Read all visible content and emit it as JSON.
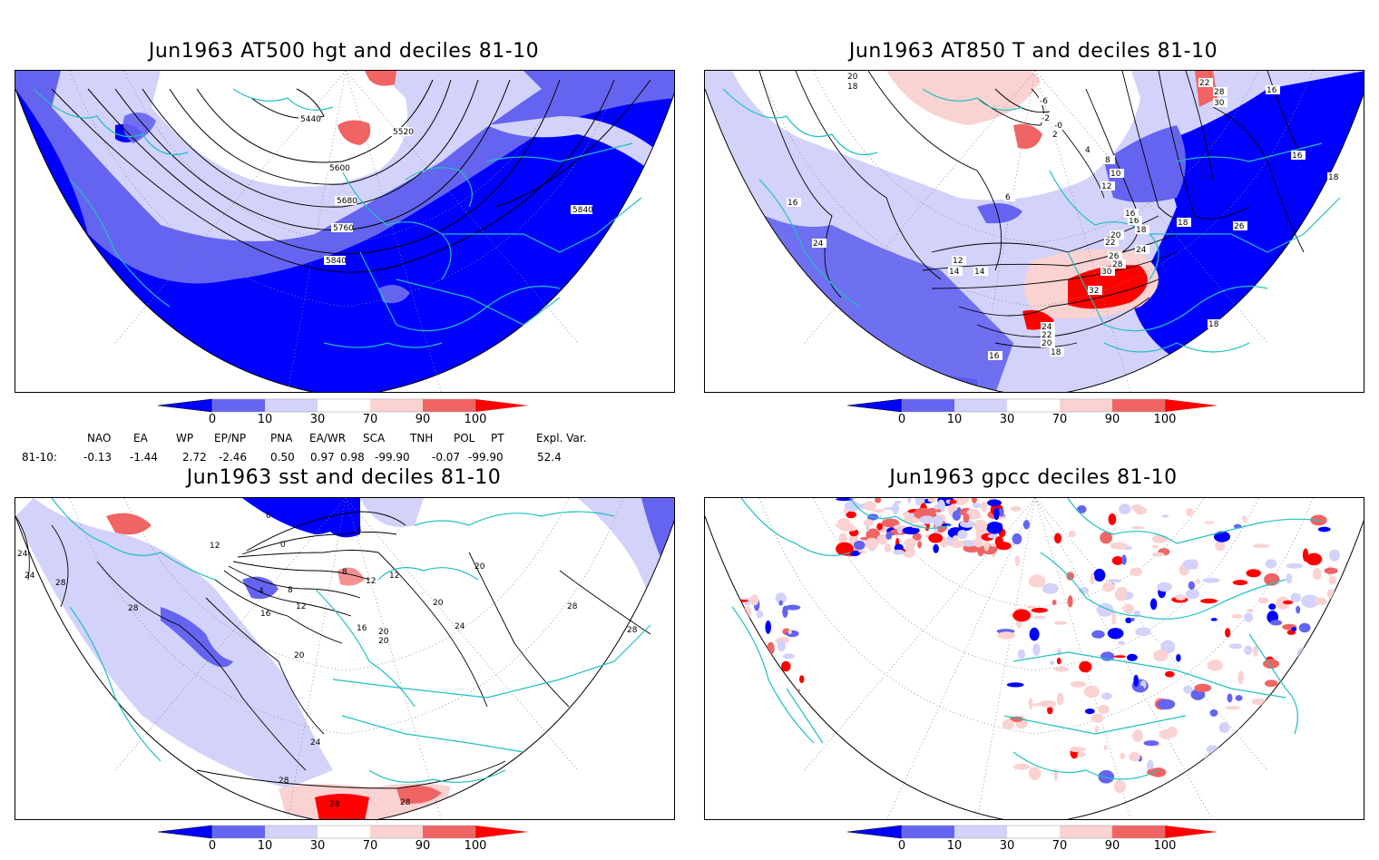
{
  "panels": {
    "p1": {
      "title": "Jun1963 AT500 hgt and deciles 81-10",
      "contour_labels": [
        "5440",
        "5520",
        "5600",
        "5680",
        "5760",
        "5840",
        "5840"
      ]
    },
    "p2": {
      "title": "Jun1963 AT850 T and deciles 81-10",
      "contour_labels": [
        "20",
        "18",
        "-6",
        "-2",
        "-0",
        "2",
        "4",
        "6",
        "8",
        "10",
        "12",
        "14",
        "16",
        "18",
        "20",
        "22",
        "24",
        "26",
        "28",
        "30",
        "32",
        "24",
        "22",
        "20",
        "18",
        "16",
        "22",
        "28",
        "30",
        "16",
        "16",
        "18",
        "18",
        "24",
        "26",
        "18",
        "16",
        "14",
        "12",
        "16"
      ]
    },
    "p3": {
      "title": "Jun1963 sst and deciles 81-10",
      "contour_labels": [
        "24",
        "24",
        "28",
        "28",
        "12",
        "0",
        "0",
        "4",
        "8",
        "12",
        "16",
        "20",
        "24",
        "28",
        "8",
        "12",
        "16",
        "20",
        "20",
        "24",
        "28",
        "28",
        "28",
        "20",
        "20",
        "28",
        "4",
        "12"
      ]
    },
    "p4": {
      "title": "Jun1963 gpcc deciles 81-10"
    }
  },
  "colorbar": {
    "ticks": [
      "0",
      "10",
      "30",
      "70",
      "90",
      "100"
    ],
    "colors": [
      "#0000ff",
      "#6464f0",
      "#d2d2fa",
      "#ffffff",
      "#fad2d2",
      "#f06464",
      "#ff0000"
    ]
  },
  "indices": {
    "headers": [
      "NAO",
      "EA",
      "WP",
      "EP/NP",
      "PNA",
      "EA/WR",
      "SCA",
      "TNH",
      "POL",
      "PT",
      "Expl. Var."
    ],
    "row_label": "81-10:",
    "values": [
      "-0.13",
      "-1.44",
      "2.72",
      "-2.46",
      "0.50",
      "0.97",
      "0.98",
      "-99.90",
      "-0.07",
      "-99.90",
      "52.4"
    ]
  },
  "colors": {
    "coast": "#20c0c0",
    "blue_dark": "#0000ff",
    "blue_mid": "#6464f0",
    "blue_light": "#d2d2fa",
    "red_light": "#fad2d2",
    "red_mid": "#f06464",
    "red_dark": "#ff0000"
  }
}
